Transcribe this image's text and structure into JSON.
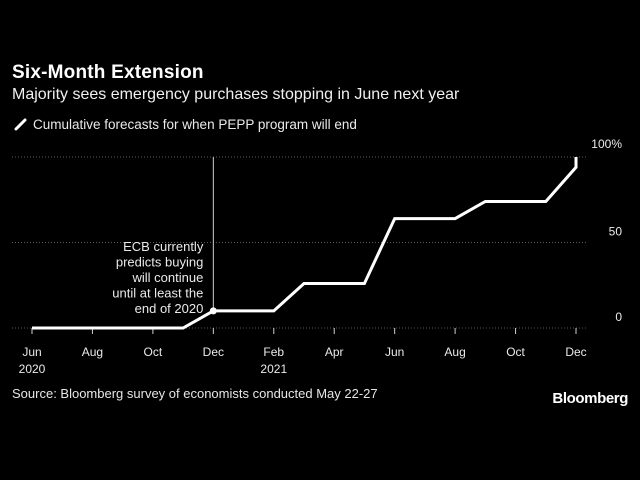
{
  "title": "Six-Month Extension",
  "subtitle": "Majority sees emergency purchases stopping in June next year",
  "legend_label": "Cumulative forecasts for when PEPP program will end",
  "source": "Source: Bloomberg survey of economists conducted May 22-27",
  "brand": "Bloomberg",
  "colors": {
    "background": "#000000",
    "line": "#ffffff",
    "grid": "#5a5a5a",
    "text": "#eaeaea"
  },
  "chart_data": {
    "type": "line",
    "xlabel": "",
    "ylabel": "",
    "ylim": [
      0,
      100
    ],
    "xlim": [
      "2020-06",
      "2021-12"
    ],
    "grid": "horizontal dotted",
    "y_ticks": [
      {
        "value": 0,
        "label": "0"
      },
      {
        "value": 50,
        "label": "50"
      },
      {
        "value": 100,
        "label": "100%"
      }
    ],
    "x_ticks": [
      {
        "x": "2020-06",
        "label": "Jun",
        "year": "2020"
      },
      {
        "x": "2020-08",
        "label": "Aug",
        "year": ""
      },
      {
        "x": "2020-10",
        "label": "Oct",
        "year": ""
      },
      {
        "x": "2020-12",
        "label": "Dec",
        "year": ""
      },
      {
        "x": "2021-02",
        "label": "Feb",
        "year": "2021"
      },
      {
        "x": "2021-04",
        "label": "Apr",
        "year": ""
      },
      {
        "x": "2021-06",
        "label": "Jun",
        "year": ""
      },
      {
        "x": "2021-08",
        "label": "Aug",
        "year": ""
      },
      {
        "x": "2021-10",
        "label": "Oct",
        "year": ""
      },
      {
        "x": "2021-12",
        "label": "Dec",
        "year": ""
      }
    ],
    "series": [
      {
        "points": [
          {
            "x": "2020-06",
            "y": 0
          },
          {
            "x": "2020-11",
            "y": 0
          },
          {
            "x": "2020-12",
            "y": 10
          },
          {
            "x": "2021-02",
            "y": 10
          },
          {
            "x": "2021-03",
            "y": 26
          },
          {
            "x": "2021-05",
            "y": 26
          },
          {
            "x": "2021-06",
            "y": 64
          },
          {
            "x": "2021-08",
            "y": 64
          },
          {
            "x": "2021-09",
            "y": 74
          },
          {
            "x": "2021-11",
            "y": 74
          },
          {
            "x": "2021-12",
            "y": 94
          },
          {
            "x": "2021-12",
            "y": 100
          }
        ]
      }
    ],
    "annotation": {
      "x": "2020-12",
      "y": 10,
      "lines": [
        "ECB currently",
        "predicts buying",
        "will continue",
        "until at least the",
        "end of 2020"
      ]
    }
  }
}
